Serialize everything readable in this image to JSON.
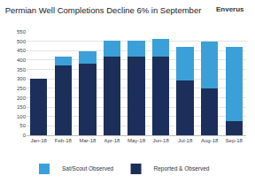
{
  "chart_data": {
    "type": "bar",
    "title": "Permian Well Completions Decline 6% in September",
    "annotations": [
      "Enverus"
    ],
    "categories": [
      "Jan-18",
      "Feb-18",
      "Mar-18",
      "Apr-18",
      "May-18",
      "Jun-18",
      "Jul-18",
      "Aug-18",
      "Sep-18"
    ],
    "series": [
      {
        "name": "Reported & Observed",
        "color": "#1c2f5a",
        "values": [
          300,
          372,
          380,
          420,
          418,
          418,
          290,
          250,
          75
        ]
      },
      {
        "name": "Sat/Scout Observed",
        "color": "#3ba0d8",
        "values": [
          0,
          45,
          65,
          85,
          85,
          95,
          180,
          250,
          395
        ]
      }
    ],
    "stacked": true,
    "ylim": [
      0,
      550
    ],
    "yticks": [
      0,
      50,
      100,
      150,
      200,
      250,
      300,
      350,
      400,
      450,
      500,
      550
    ],
    "grid": true,
    "legend": "bottom left"
  }
}
